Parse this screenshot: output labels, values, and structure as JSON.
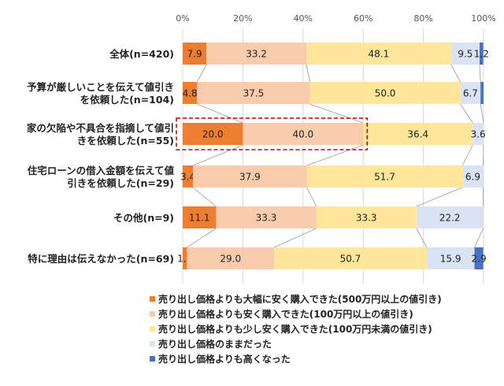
{
  "chart_data": {
    "type": "bar",
    "orientation": "horizontal",
    "stacked": true,
    "percent_stacked": true,
    "xlim": [
      0,
      100
    ],
    "xticks": [
      "0%",
      "20%",
      "40%",
      "60%",
      "80%",
      "100%"
    ],
    "categories": [
      [
        "全体(n=420)"
      ],
      [
        "予算が厳しいことを伝えて値引き",
        "を依頼した(n=104)"
      ],
      [
        "家の欠陥や不具合を指摘して値引",
        "きを依頼した(n=55)"
      ],
      [
        "住宅ローンの借入金額を伝えて値",
        "引きを依頼した(n=29)"
      ],
      [
        "その他(n=9)"
      ],
      [
        "特に理由は伝えなかった(n=69)"
      ]
    ],
    "series": [
      {
        "name": "売り出し価格よりも大幅に安く購入できた(500万円以上の値引き)",
        "color": "#ED7D31",
        "values": [
          7.9,
          4.8,
          20.0,
          3.4,
          11.1,
          1.4
        ],
        "labels": [
          "7.9",
          "4.8",
          "20.0",
          "3.4",
          "11.1",
          "1.4"
        ]
      },
      {
        "name": "売り出し価格よりも安く購入できた(100万円以上の値引き)",
        "color": "#F8CBAD",
        "values": [
          33.2,
          37.5,
          40.0,
          37.9,
          33.3,
          29.0
        ],
        "labels": [
          "33.2",
          "37.5",
          "40.0",
          "37.9",
          "33.3",
          "29.0"
        ]
      },
      {
        "name": "売り出し価格よりも少し安く購入できた(100万円未満の値引き)",
        "color": "#FFE699",
        "values": [
          48.1,
          50.0,
          36.4,
          51.7,
          33.3,
          50.7
        ],
        "labels": [
          "48.1",
          "50.0",
          "36.4",
          "51.7",
          "33.3",
          "50.7"
        ]
      },
      {
        "name": "売り出し価格のままだった",
        "color": "#DAE3F3",
        "values": [
          9.5,
          6.7,
          3.6,
          6.9,
          22.2,
          15.9
        ],
        "labels": [
          "9.5",
          "6.7",
          "3.6",
          "6.9",
          "22.2",
          "15.9"
        ]
      },
      {
        "name": "売り出し価格よりも高くなった",
        "color": "#4472C4",
        "values": [
          1.2,
          1.0,
          0,
          0,
          0,
          2.9
        ],
        "labels": [
          "1.2",
          "",
          "",
          "",
          "",
          "2.9"
        ]
      }
    ],
    "highlight": {
      "category_index": 2,
      "series_indices": [
        0,
        1
      ],
      "style": "red dashed box"
    },
    "connector_lines": true,
    "legend": "bottom",
    "grid": true
  }
}
